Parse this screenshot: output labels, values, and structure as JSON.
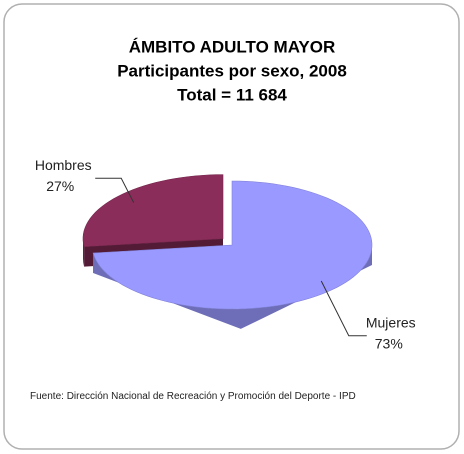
{
  "chart_data": {
    "type": "pie",
    "title": "ÁMBITO ADULTO MAYOR",
    "subtitle": "Participantes por sexo, 2008",
    "total_label": "Total = 11 684",
    "categories": [
      "Hombres",
      "Mujeres"
    ],
    "values": [
      27,
      73
    ],
    "value_labels": [
      "27%",
      "73%"
    ],
    "colors": [
      "#8b2d5a",
      "#9999ff"
    ],
    "source": "Fuente: Dirección Nacional de Recreación y Promoción del Deporte - IPD"
  }
}
